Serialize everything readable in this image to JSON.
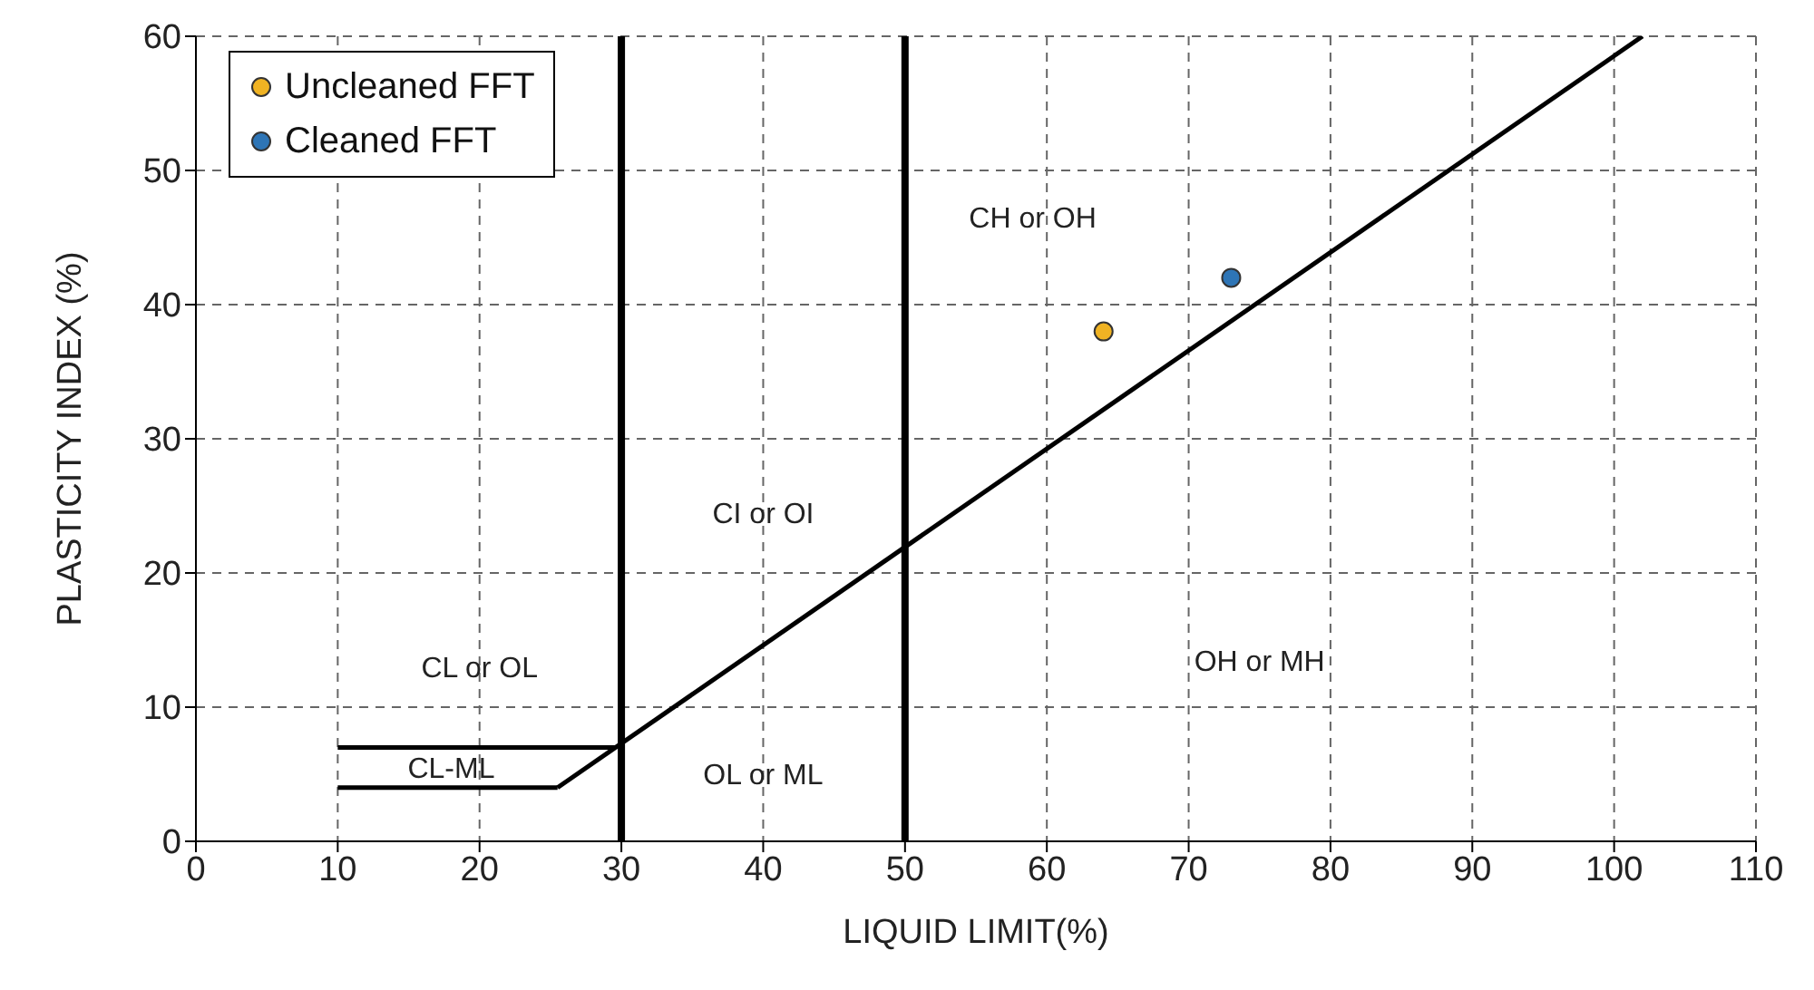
{
  "chart_data": {
    "type": "scatter",
    "xlabel": "LIQUID LIMIT(%)",
    "ylabel": "PLASTICITY INDEX (%)",
    "xlim": [
      0,
      110
    ],
    "xticks": [
      0,
      10,
      20,
      30,
      40,
      50,
      60,
      70,
      80,
      90,
      100,
      110
    ],
    "ylim": [
      0,
      60
    ],
    "yticks": [
      0,
      10,
      20,
      30,
      40,
      50,
      60
    ],
    "grid": true,
    "legend": "top left",
    "marker": "circle",
    "series": [
      {
        "name": "Uncleaned FFT",
        "color": "#f0b323",
        "x": [
          64
        ],
        "values": [
          38
        ]
      },
      {
        "name": "Cleaned FFT",
        "color": "#2e75b6",
        "x": [
          73
        ],
        "values": [
          42
        ]
      },
      {
        "type": "line",
        "marker": "none",
        "color": "#000000",
        "x": [
          25.5,
          102
        ],
        "values": [
          4,
          60
        ]
      },
      {
        "type": "line",
        "marker": "none",
        "color": "#000000",
        "x": [
          10,
          29.6
        ],
        "values": [
          7,
          7
        ]
      },
      {
        "type": "line",
        "marker": "none",
        "color": "#000000",
        "x": [
          10,
          25.5
        ],
        "values": [
          4,
          4
        ]
      }
    ],
    "ref_lines": [
      {
        "axis": "x",
        "value": 30,
        "color": "#000000"
      },
      {
        "axis": "x",
        "value": 50,
        "color": "#000000"
      }
    ],
    "annotations": [
      "CH or OH",
      "CI or OI",
      "CL or OL",
      "CL-ML",
      "OL or ML",
      "OH or MH"
    ]
  }
}
